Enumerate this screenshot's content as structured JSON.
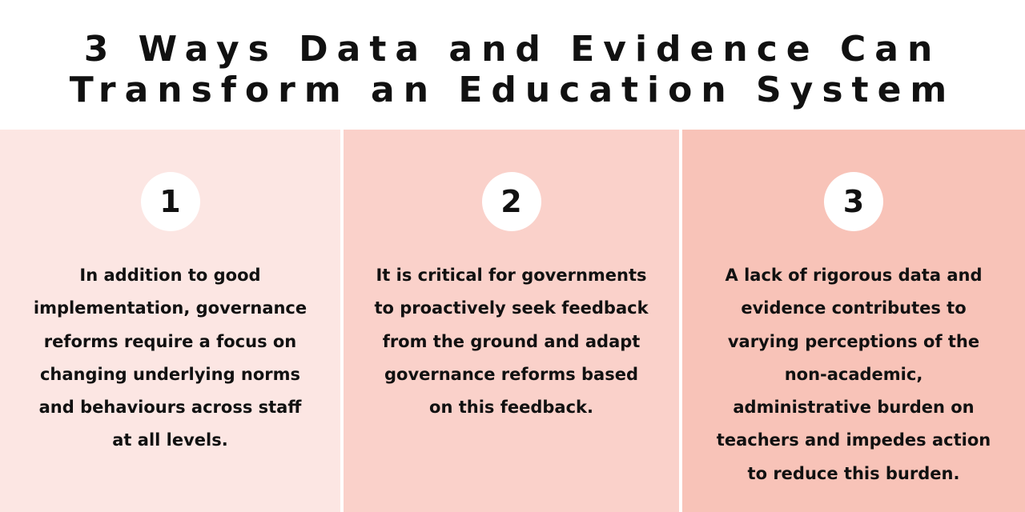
{
  "header": {
    "title_line_1": "3 Ways Data and Evidence Can",
    "title_line_2": "Transform an Education System"
  },
  "panels": [
    {
      "number": "1",
      "lines": [
        "In addition to good",
        "implementation, governance",
        "reforms require a focus on",
        "changing underlying norms",
        "and behaviours across staff",
        "at all levels."
      ]
    },
    {
      "number": "2",
      "lines": [
        "It is critical for governments",
        "to proactively seek feedback",
        "from the ground and adapt",
        "governance reforms based",
        "on this feedback."
      ]
    },
    {
      "number": "3",
      "lines": [
        "A lack of rigorous data and",
        "evidence contributes to",
        "varying perceptions of the",
        "non-academic,",
        "administrative burden on",
        "teachers and impedes action",
        "to reduce this burden."
      ]
    }
  ],
  "colors": {
    "panel_1_bg": "#fce6e3",
    "panel_2_bg": "#fad1ca",
    "panel_3_bg": "#f8c3b8",
    "text": "#111111",
    "badge_bg": "#ffffff"
  }
}
